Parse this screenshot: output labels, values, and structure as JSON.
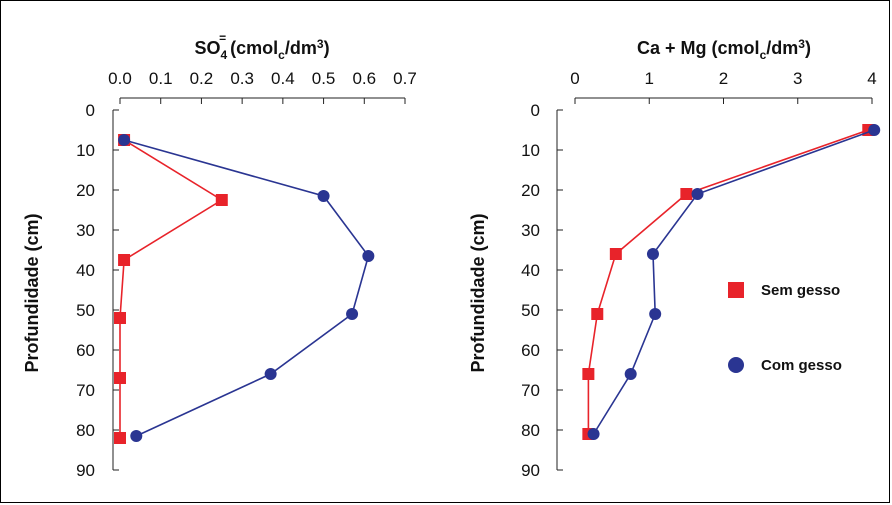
{
  "chart_data": [
    {
      "type": "line",
      "title": "SO₄⁼ (cmol꜀/dm³)",
      "title_parts": {
        "base": "SO",
        "sub": "4",
        "sup": "=",
        "rest": "(cmol",
        "rest_sub": "c",
        "rest2": "/dm",
        "rest_sup": "3",
        "rest3": ")"
      },
      "ylabel": "Profundidade (cm)",
      "xlim": [
        0,
        0.7
      ],
      "ylim": [
        0,
        90
      ],
      "xticks": [
        "0.0",
        "0.1",
        "0.2",
        "0.3",
        "0.4",
        "0.5",
        "0.6",
        "0.7"
      ],
      "yticks": [
        "0",
        "10",
        "20",
        "30",
        "40",
        "50",
        "60",
        "70",
        "80",
        "90"
      ],
      "series": [
        {
          "name": "Sem gesso",
          "color": "#e8232a",
          "marker": "square",
          "points": [
            [
              0.01,
              7.5
            ],
            [
              0.25,
              22.5
            ],
            [
              0.01,
              37.5
            ],
            [
              0.0,
              52
            ],
            [
              0.0,
              67
            ],
            [
              0.0,
              82
            ]
          ]
        },
        {
          "name": "Com gesso",
          "color": "#2a3592",
          "marker": "circle",
          "points": [
            [
              0.01,
              7.5
            ],
            [
              0.5,
              21.5
            ],
            [
              0.61,
              36.5
            ],
            [
              0.57,
              51
            ],
            [
              0.37,
              66
            ],
            [
              0.04,
              81.5
            ]
          ]
        }
      ]
    },
    {
      "type": "line",
      "title": "Ca + Mg (cmol꜀/dm³)",
      "title_parts": {
        "base": "Ca + Mg (cmol",
        "sub": "c",
        "rest": "/dm",
        "rest_sup": "3",
        "rest2": ")"
      },
      "ylabel": "Profundidade (cm)",
      "xlim": [
        0,
        4
      ],
      "ylim": [
        0,
        90
      ],
      "xticks": [
        "0",
        "1",
        "2",
        "3",
        "4"
      ],
      "yticks": [
        "0",
        "10",
        "20",
        "30",
        "40",
        "50",
        "60",
        "70",
        "80",
        "90"
      ],
      "legend": [
        {
          "label": "Sem gesso",
          "color": "#e8232a",
          "marker": "square"
        },
        {
          "label": "Com gesso",
          "color": "#2a3592",
          "marker": "circle"
        }
      ],
      "series": [
        {
          "name": "Sem gesso",
          "color": "#e8232a",
          "marker": "square",
          "points": [
            [
              3.95,
              5
            ],
            [
              1.5,
              21
            ],
            [
              0.55,
              36
            ],
            [
              0.3,
              51
            ],
            [
              0.18,
              66
            ],
            [
              0.18,
              81
            ]
          ]
        },
        {
          "name": "Com gesso",
          "color": "#2a3592",
          "marker": "circle",
          "points": [
            [
              4.03,
              5
            ],
            [
              1.65,
              21
            ],
            [
              1.05,
              36
            ],
            [
              1.08,
              51
            ],
            [
              0.75,
              66
            ],
            [
              0.25,
              81
            ]
          ]
        }
      ]
    }
  ]
}
